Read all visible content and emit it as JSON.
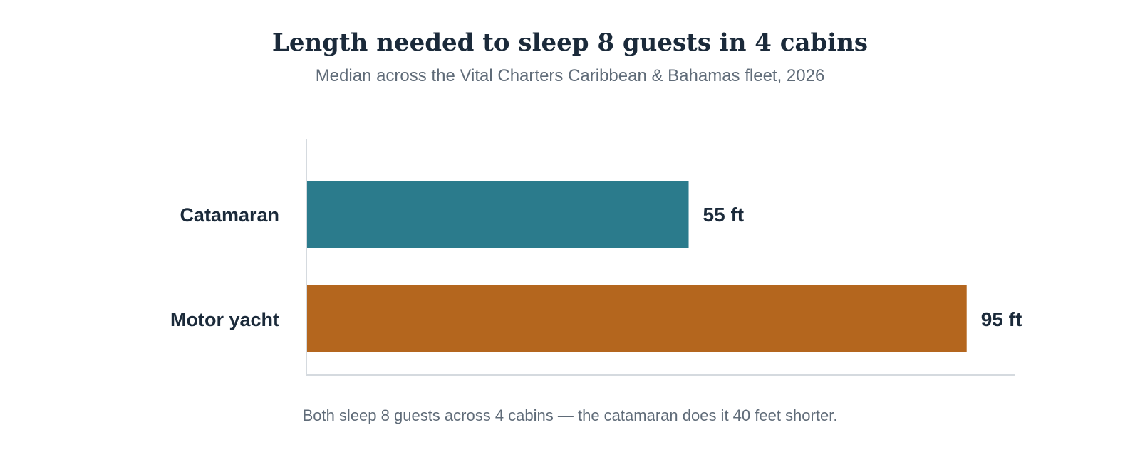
{
  "chart_data": {
    "type": "bar",
    "orientation": "horizontal",
    "title": "Length needed to sleep 8 guests in 4 cabins",
    "subtitle": "Median across the Vital Charters Caribbean & Bahamas fleet, 2026",
    "categories": [
      "Catamaran",
      "Motor yacht"
    ],
    "values": [
      55,
      95
    ],
    "value_labels": [
      "55 ft",
      "95 ft"
    ],
    "colors": [
      "#2b7b8c",
      "#b4661e"
    ],
    "xlim": [
      0,
      102
    ],
    "grid": false,
    "note": "Both sleep 8 guests across 4 cabins — the catamaran does it 40 feet shorter."
  }
}
